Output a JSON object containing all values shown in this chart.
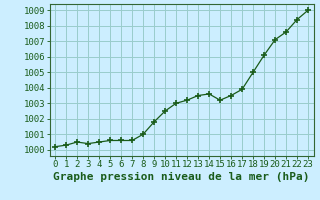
{
  "x": [
    0,
    1,
    2,
    3,
    4,
    5,
    6,
    7,
    8,
    9,
    10,
    11,
    12,
    13,
    14,
    15,
    16,
    17,
    18,
    19,
    20,
    21,
    22,
    23
  ],
  "y": [
    1000.2,
    1000.3,
    1000.5,
    1000.4,
    1000.5,
    1000.6,
    1000.6,
    1000.6,
    1001.0,
    1001.8,
    1002.5,
    1003.0,
    1003.2,
    1003.5,
    1003.6,
    1003.2,
    1003.5,
    1003.9,
    1005.0,
    1006.1,
    1007.1,
    1007.6,
    1008.4,
    1009.0
  ],
  "line_color": "#1a5c1a",
  "marker": "+",
  "bg_color": "#cceeff",
  "grid_color": "#99cccc",
  "xlabel": "Graphe pression niveau de la mer (hPa)",
  "xlabel_color": "#1a5c1a",
  "ylabel_ticks": [
    1000,
    1001,
    1002,
    1003,
    1004,
    1005,
    1006,
    1007,
    1008,
    1009
  ],
  "ylim": [
    999.6,
    1009.4
  ],
  "xlim": [
    -0.5,
    23.5
  ],
  "tick_label_color": "#1a5c1a",
  "xlabel_fontsize": 8,
  "tick_fontsize": 6.5
}
